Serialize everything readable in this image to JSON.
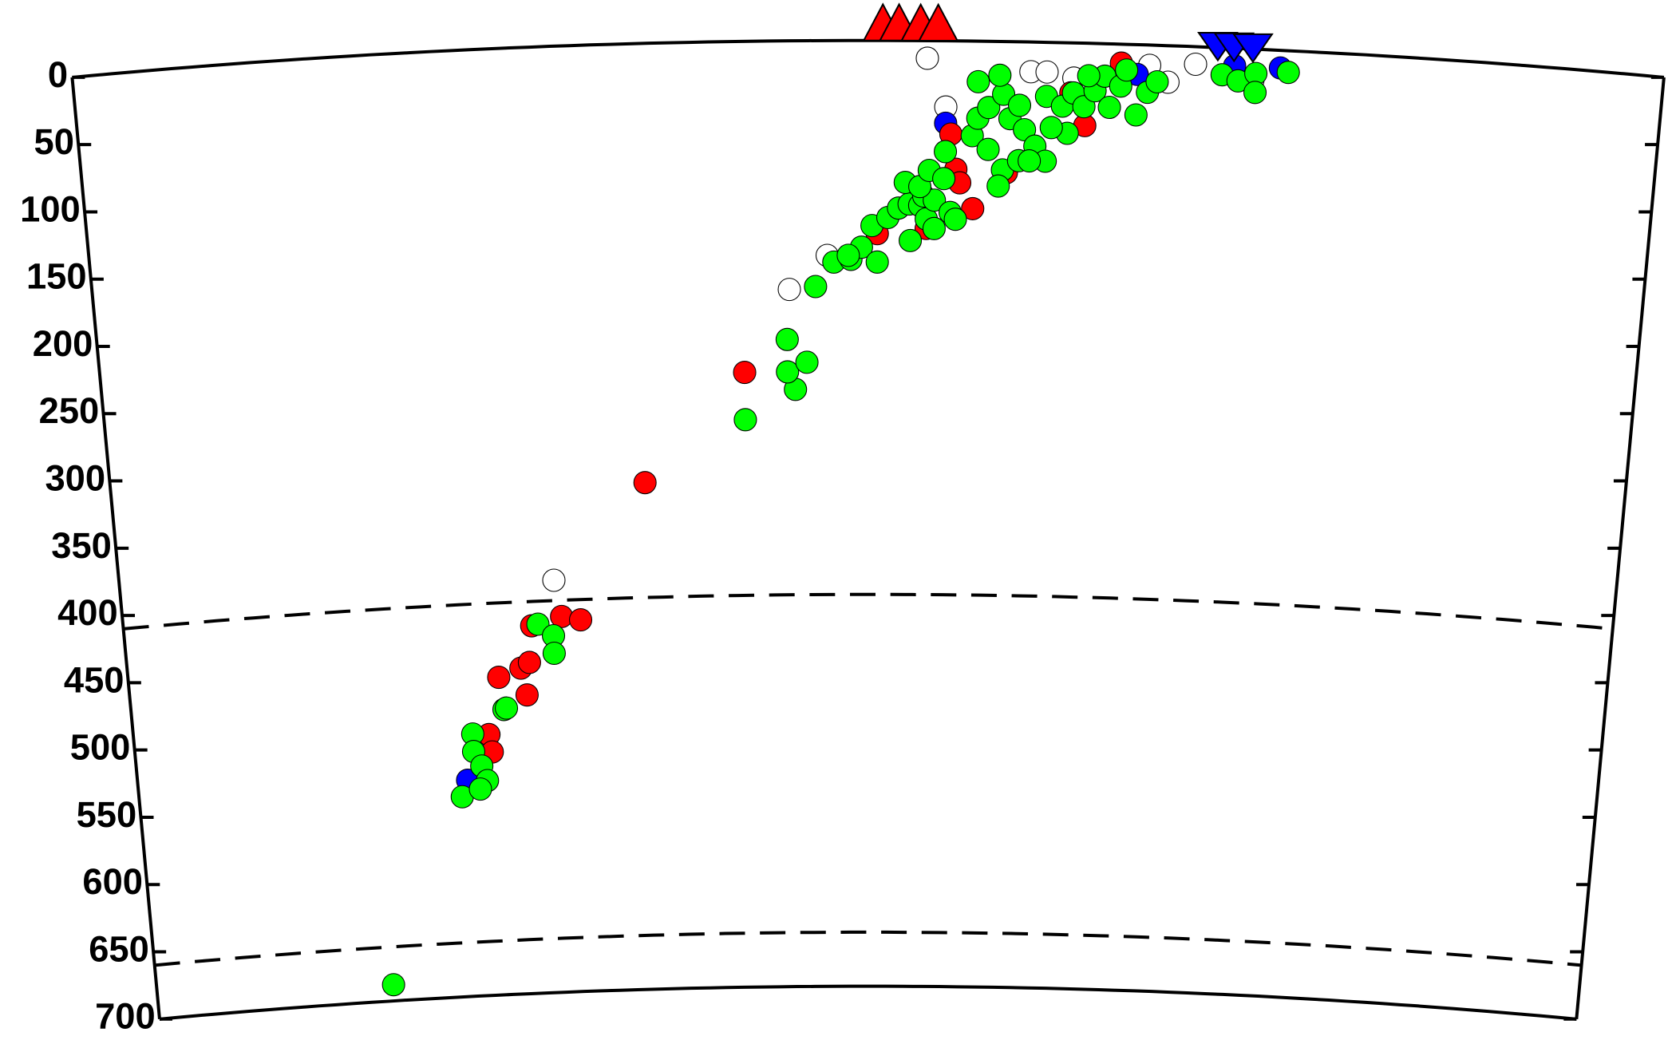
{
  "chart_data": {
    "type": "scatter",
    "ylim": [
      0,
      700
    ],
    "yticks": [
      0,
      50,
      100,
      150,
      200,
      250,
      300,
      350,
      400,
      450,
      500,
      550,
      600,
      650,
      700
    ],
    "xlim": [
      0,
      1180
    ],
    "reference_depths": [
      410,
      660
    ],
    "series": [
      {
        "color": "#ffffff",
        "x": [
          342,
          530,
          559,
          634,
          711,
          723,
          743,
          799,
          813,
          833,
          648,
          876
        ],
        "values": [
          395,
          184,
          159,
          13,
          22,
          22,
          26,
          15,
          27,
          13,
          49,
          23
        ]
      },
      {
        "color": "#0000ff",
        "x": [
          266,
          648,
          790,
          896,
          862
        ],
        "values": [
          540,
          61,
          22,
          13,
          13
        ]
      },
      {
        "color": "#ff0000",
        "x": [
          285,
          287,
          295,
          317,
          313,
          320,
          323,
          347,
          362,
          416,
          495,
          656,
          659,
          669,
          652,
          597,
          634,
          778,
          741,
          752,
          694
        ],
        "values": [
          507,
          520,
          465,
          479,
          459,
          455,
          428,
          422,
          425,
          325,
          245,
          95,
          105,
          124,
          69,
          143,
          139,
          14,
          37,
          61,
          97
        ]
      },
      {
        "color": "#00ff00",
        "x": [
          196,
          261,
          272,
          272,
          278,
          282,
          276,
          298,
          300,
          328,
          340,
          340,
          495,
          534,
          528,
          543,
          528,
          550,
          564,
          577,
          585,
          597,
          575,
          593,
          605,
          613,
          622,
          621,
          629,
          634,
          640,
          632,
          640,
          652,
          656,
          618,
          629,
          636,
          648,
          647,
          668,
          680,
          691,
          688,
          703,
          672,
          680,
          696,
          707,
          715,
          723,
          711,
          691,
          703,
          688,
          672,
          723,
          735,
          743,
          751,
          739,
          727,
          759,
          770,
          766,
          778,
          790,
          798,
          805,
          782,
          754,
          853,
          865,
          878,
          878,
          902
        ],
        "values": [
          688,
          552,
          506,
          519,
          530,
          541,
          547,
          489,
          488,
          427,
          436,
          449,
          280,
          258,
          245,
          238,
          221,
          182,
          164,
          162,
          153,
          164,
          159,
          137,
          131,
          124,
          148,
          121,
          122,
          132,
          139,
          115,
          118,
          127,
          132,
          105,
          108,
          96,
          82,
          102,
          70,
          80,
          95,
          107,
          88,
          57,
          49,
          57,
          65,
          77,
          88,
          88,
          39,
          47,
          25,
          30,
          40,
          47,
          37,
          47,
          67,
          63,
          35,
          47,
          24,
          31,
          52,
          35,
          27,
          19,
          24,
          20,
          24,
          18,
          32,
          16
        ]
      }
    ],
    "markers": [
      {
        "shape": "triangle-up",
        "color": "#ff0000",
        "x": [
          601,
          613,
          629,
          642
        ]
      },
      {
        "shape": "triangle-down",
        "color": "#0000ff",
        "x": [
          849,
          861,
          875
        ]
      }
    ]
  }
}
